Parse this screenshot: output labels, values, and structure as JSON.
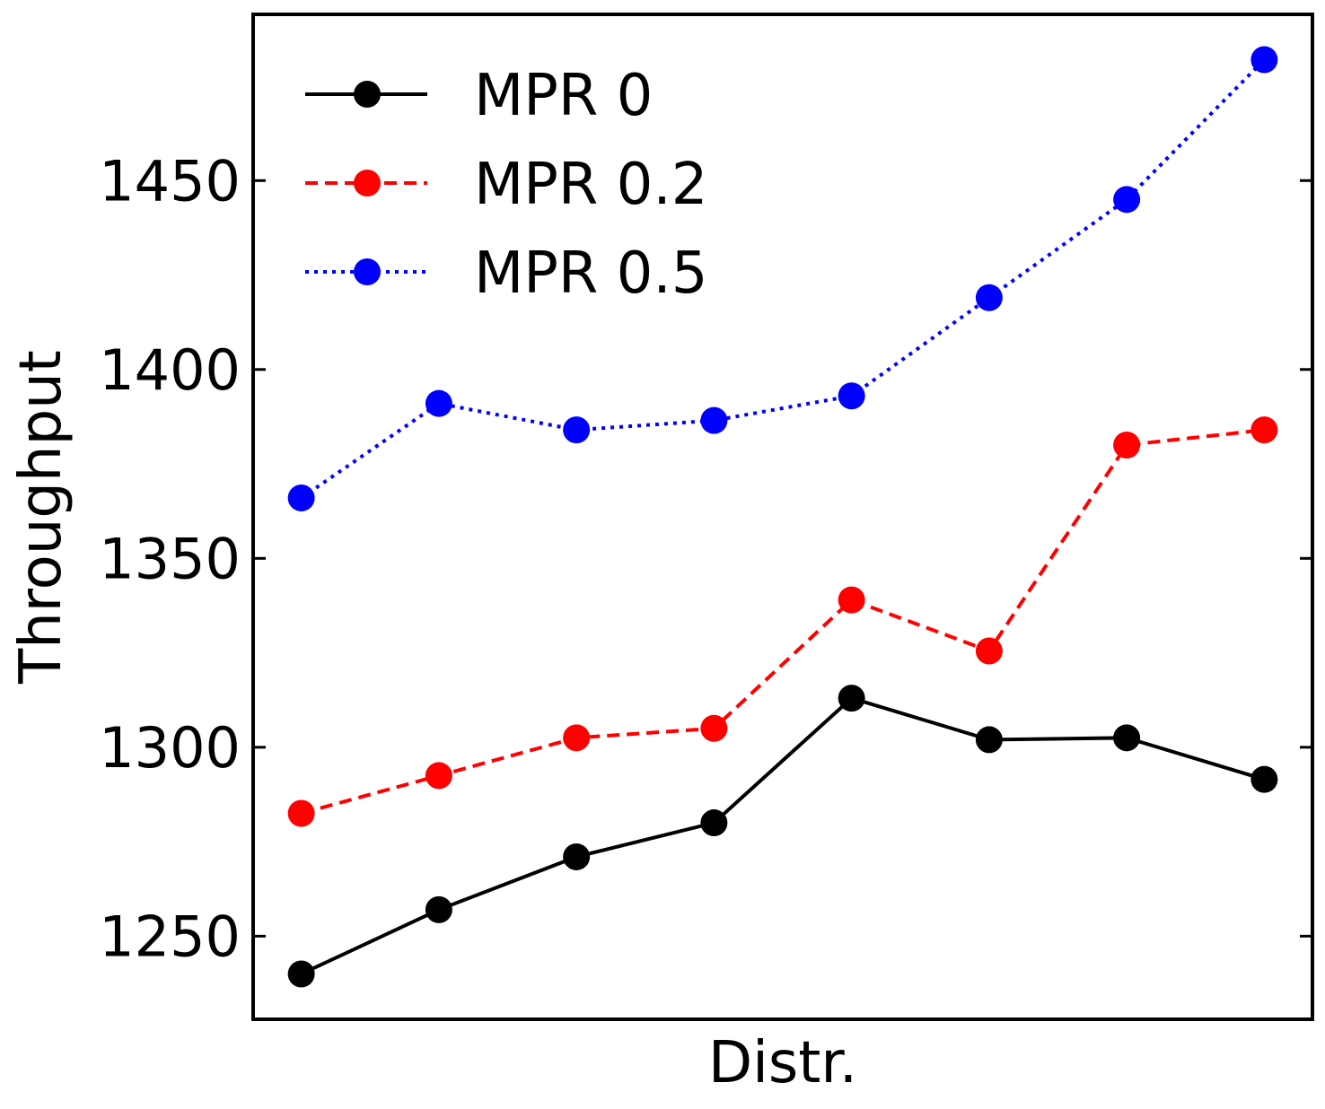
{
  "chart_data": {
    "type": "line",
    "title": "",
    "xlabel": "Distr.",
    "ylabel": "Throughput",
    "x": [
      1,
      2,
      3,
      4,
      5,
      6,
      7,
      8
    ],
    "xlim": [
      0.65,
      8.35
    ],
    "ylim": [
      1228,
      1494
    ],
    "yticks": [
      1250,
      1300,
      1350,
      1400,
      1450
    ],
    "x_tick_labels_visible": false,
    "grid": false,
    "legend_position": "top-left",
    "series": [
      {
        "name": "MPR 0",
        "color": "#000000",
        "line_style": "solid",
        "marker": "circle",
        "values": [
          1240,
          1257,
          1271,
          1280,
          1313,
          1302,
          1302.5,
          1291.5
        ]
      },
      {
        "name": "MPR 0.2",
        "color": "#ff0000",
        "line_style": "dashed",
        "marker": "circle",
        "values": [
          1282.5,
          1292.5,
          1302.5,
          1305,
          1339,
          1325.5,
          1380,
          1384
        ]
      },
      {
        "name": "MPR 0.5",
        "color": "#0000ff",
        "line_style": "dotted",
        "marker": "circle",
        "values": [
          1366,
          1391,
          1384,
          1386.5,
          1393,
          1419,
          1445,
          1482
        ]
      }
    ]
  }
}
